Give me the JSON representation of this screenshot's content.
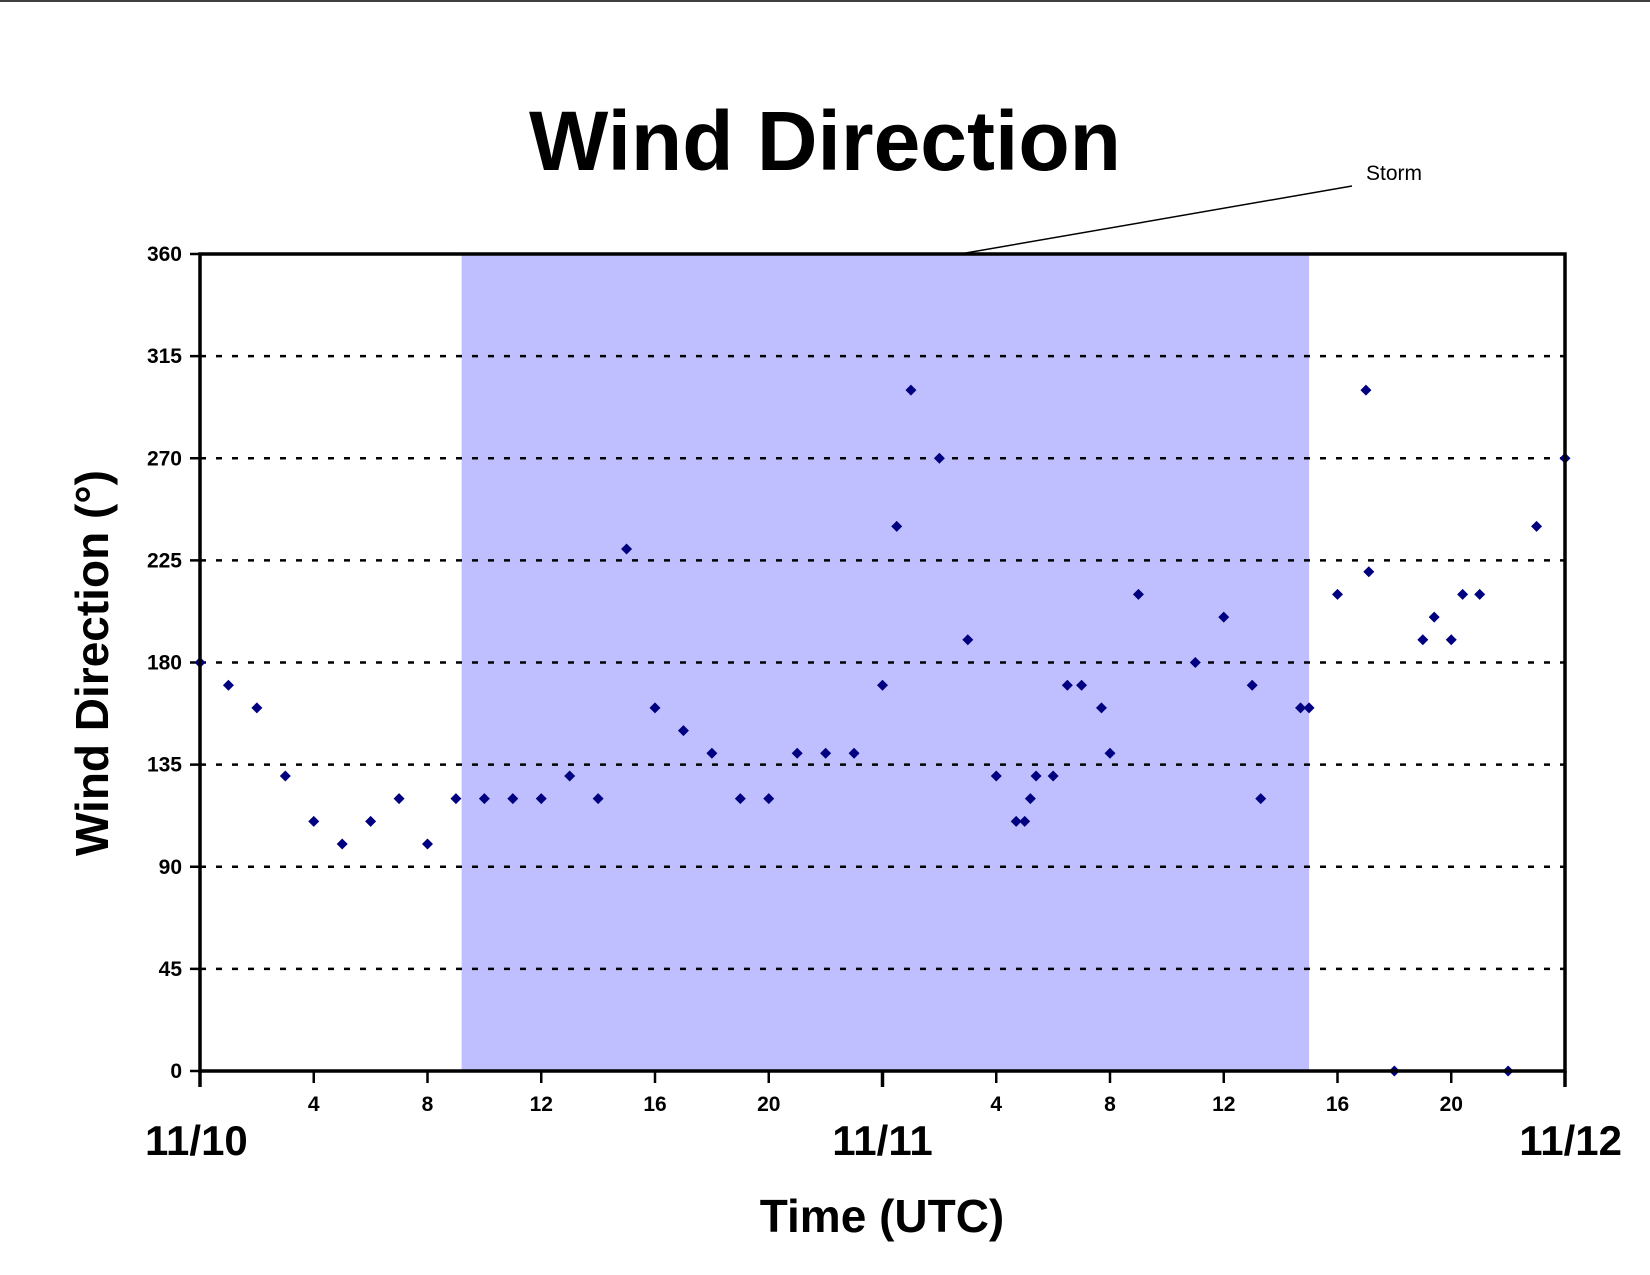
{
  "chart_data": {
    "type": "scatter",
    "title": "Wind Direction",
    "xlabel": "Time (UTC)",
    "ylabel": "Wind Direction (°)",
    "ylim": [
      0,
      360
    ],
    "yticks": [
      "0",
      "45",
      "90",
      "135",
      "180",
      "225",
      "270",
      "315",
      "360"
    ],
    "xlim_hours": [
      0,
      48
    ],
    "xticks": [
      {
        "hour": 4,
        "label": "4"
      },
      {
        "hour": 8,
        "label": "8"
      },
      {
        "hour": 12,
        "label": "12"
      },
      {
        "hour": 16,
        "label": "16"
      },
      {
        "hour": 20,
        "label": "20"
      },
      {
        "hour": 28,
        "label": "4"
      },
      {
        "hour": 32,
        "label": "8"
      },
      {
        "hour": 36,
        "label": "12"
      },
      {
        "hour": 40,
        "label": "16"
      },
      {
        "hour": 44,
        "label": "20"
      }
    ],
    "date_labels": [
      {
        "hour": 0,
        "label": "11/10"
      },
      {
        "hour": 24,
        "label": "11/11"
      },
      {
        "hour": 48,
        "label": "11/12"
      }
    ],
    "grid": "horizontal dashed",
    "annotation": {
      "text": "Storm",
      "start_hour": 9.2,
      "end_hour": 39.0
    },
    "colors": {
      "marker": "#000080",
      "storm_band": "#bfbfff"
    },
    "series": [
      {
        "x": [
          0,
          1,
          2,
          3,
          4,
          5,
          6,
          7,
          8,
          9,
          10,
          11,
          12,
          13,
          14,
          15,
          16,
          17,
          18,
          19,
          20,
          21,
          22,
          23,
          24,
          24.5,
          25,
          26,
          27,
          28,
          28.7,
          29,
          29.2,
          29.4,
          30,
          30.5,
          31,
          31.7,
          32,
          33,
          35,
          36,
          37,
          37.3,
          38.7,
          39,
          40,
          41,
          41.1,
          42,
          43,
          43.4,
          44,
          44.4,
          45,
          46,
          47,
          48
        ],
        "y": [
          180,
          170,
          160,
          130,
          110,
          100,
          110,
          120,
          100,
          120,
          120,
          120,
          120,
          130,
          120,
          230,
          160,
          150,
          140,
          120,
          120,
          140,
          140,
          140,
          170,
          240,
          300,
          270,
          190,
          130,
          110,
          110,
          120,
          130,
          130,
          170,
          170,
          160,
          140,
          210,
          180,
          200,
          170,
          120,
          160,
          160,
          210,
          300,
          220,
          0,
          190,
          200,
          190,
          210,
          210,
          0,
          240,
          270
        ]
      }
    ]
  }
}
